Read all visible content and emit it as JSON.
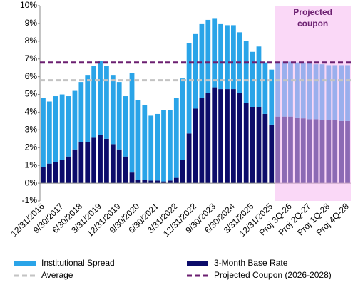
{
  "chart_data": {
    "type": "stacked_bar",
    "categories": [
      "12/31/2016",
      null,
      null,
      "9/30/2017",
      null,
      null,
      "6/30/2018",
      null,
      null,
      "3/31/2019",
      null,
      null,
      "12/31/2019",
      null,
      null,
      "9/30/2020",
      null,
      null,
      "6/30/2021",
      null,
      null,
      "3/31/2022",
      null,
      null,
      "12/31/2022",
      null,
      null,
      "9/30/2023",
      null,
      null,
      "6/30/2024",
      null,
      null,
      "3/31/2025",
      null,
      null,
      "12/31/2025",
      null,
      null,
      "Proj 3Q-26",
      null,
      null,
      "Proj 2Q-27",
      null,
      null,
      "Proj 1Q-28",
      null,
      null,
      "Proj 4Q-28"
    ],
    "series": [
      {
        "name": "3-Month Base Rate",
        "color": "#0c0c6a",
        "values": [
          0.9,
          1.1,
          1.2,
          1.3,
          1.5,
          1.9,
          2.3,
          2.3,
          2.6,
          2.7,
          2.5,
          2.2,
          1.9,
          1.5,
          0.6,
          0.2,
          0.2,
          0.15,
          0.15,
          0.1,
          0.15,
          0.3,
          1.3,
          2.8,
          4.2,
          4.8,
          5.1,
          5.4,
          5.3,
          5.3,
          5.3,
          5.1,
          4.5,
          4.3,
          4.3,
          3.9,
          3.3,
          3.75,
          3.75,
          3.75,
          3.7,
          3.65,
          3.6,
          3.6,
          3.55,
          3.55,
          3.55,
          3.5,
          3.5
        ]
      },
      {
        "name": "Institutional Spread",
        "color": "#2aa4e8",
        "values": [
          3.9,
          3.5,
          3.7,
          3.7,
          3.4,
          3.3,
          3.4,
          3.8,
          4.0,
          4.2,
          4.1,
          3.9,
          3.8,
          3.4,
          5.6,
          4.5,
          4.2,
          3.65,
          3.75,
          4.0,
          3.95,
          4.5,
          4.6,
          5.1,
          4.2,
          4.2,
          4.1,
          3.9,
          3.7,
          3.6,
          3.6,
          3.4,
          3.5,
          3.1,
          3.4,
          2.9,
          3.1,
          3.1,
          3.1,
          3.1,
          3.1,
          3.15,
          3.15,
          3.1,
          3.15,
          3.1,
          3.1,
          3.15,
          3.15
        ]
      }
    ],
    "lines": [
      {
        "name": "Average",
        "value": 5.8,
        "color": "#c3c3c3"
      },
      {
        "name": "Projected Coupon (2026-2028)",
        "value": 6.8,
        "color": "#6b1f70"
      }
    ],
    "annotation": [
      "Projected",
      "coupon"
    ],
    "projected_start": "Proj 3Q-26",
    "ylim": [
      -1,
      10
    ],
    "yticks": [
      {
        "value": -1,
        "label": "-1%"
      },
      {
        "value": 0,
        "label": "0%"
      },
      {
        "value": 1,
        "label": "1%"
      },
      {
        "value": 2,
        "label": "2%"
      },
      {
        "value": 3,
        "label": "3%"
      },
      {
        "value": 4,
        "label": "4%"
      },
      {
        "value": 5,
        "label": "5%"
      },
      {
        "value": 6,
        "label": "6%"
      },
      {
        "value": 7,
        "label": "7%"
      },
      {
        "value": 8,
        "label": "8%"
      },
      {
        "value": 9,
        "label": "9%"
      },
      {
        "value": 10,
        "label": "10%"
      }
    ],
    "legend": "bottom"
  }
}
